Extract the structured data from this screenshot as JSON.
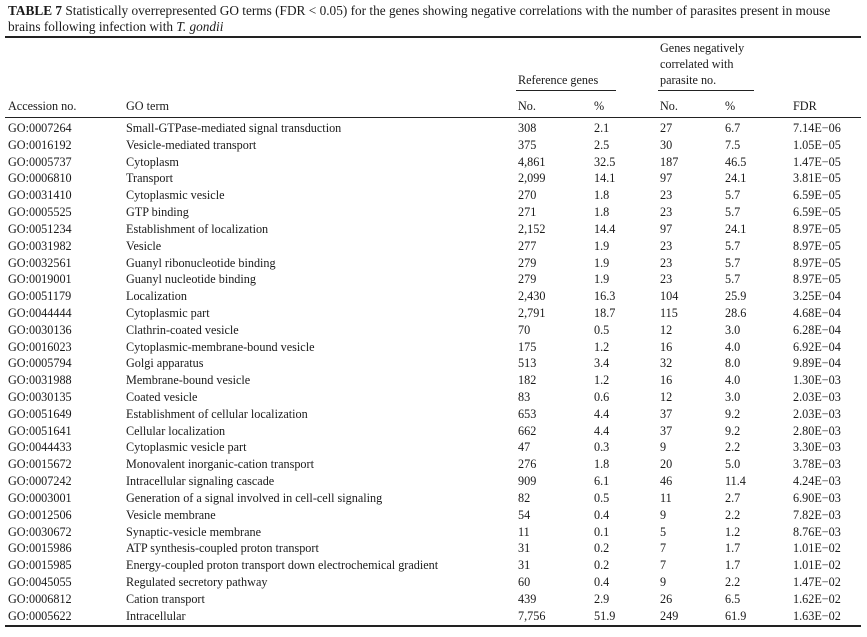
{
  "caption": {
    "label": "TABLE 7",
    "text": " Statistically overrepresented GO terms (FDR < 0.05) for the genes showing negative correlations with the number of parasites present in mouse brains following infection with ",
    "species": "T. gondii"
  },
  "header": {
    "group_reference": "Reference genes",
    "group_neg_line1": "Genes negatively",
    "group_neg_line2": "correlated with",
    "group_neg_line3": "parasite no.",
    "col_accession": "Accession no.",
    "col_term": "GO term",
    "col_ref_no": "No.",
    "col_ref_pct": "%",
    "col_neg_no": "No.",
    "col_neg_pct": "%",
    "col_fdr": "FDR"
  },
  "rows": [
    {
      "acc": "GO:0007264",
      "term": "Small-GTPase-mediated signal transduction",
      "ref_no": "308",
      "ref_pct": "2.1",
      "neg_no": "27",
      "neg_pct": "6.7",
      "fdr": "7.14E−06"
    },
    {
      "acc": "GO:0016192",
      "term": "Vesicle-mediated transport",
      "ref_no": "375",
      "ref_pct": "2.5",
      "neg_no": "30",
      "neg_pct": "7.5",
      "fdr": "1.05E−05"
    },
    {
      "acc": "GO:0005737",
      "term": "Cytoplasm",
      "ref_no": "4,861",
      "ref_pct": "32.5",
      "neg_no": "187",
      "neg_pct": "46.5",
      "fdr": "1.47E−05"
    },
    {
      "acc": "GO:0006810",
      "term": "Transport",
      "ref_no": "2,099",
      "ref_pct": "14.1",
      "neg_no": "97",
      "neg_pct": "24.1",
      "fdr": "3.81E−05"
    },
    {
      "acc": "GO:0031410",
      "term": "Cytoplasmic vesicle",
      "ref_no": "270",
      "ref_pct": "1.8",
      "neg_no": "23",
      "neg_pct": "5.7",
      "fdr": "6.59E−05"
    },
    {
      "acc": "GO:0005525",
      "term": "GTP binding",
      "ref_no": "271",
      "ref_pct": "1.8",
      "neg_no": "23",
      "neg_pct": "5.7",
      "fdr": "6.59E−05"
    },
    {
      "acc": "GO:0051234",
      "term": "Establishment of localization",
      "ref_no": "2,152",
      "ref_pct": "14.4",
      "neg_no": "97",
      "neg_pct": "24.1",
      "fdr": "8.97E−05"
    },
    {
      "acc": "GO:0031982",
      "term": "Vesicle",
      "ref_no": "277",
      "ref_pct": "1.9",
      "neg_no": "23",
      "neg_pct": "5.7",
      "fdr": "8.97E−05"
    },
    {
      "acc": "GO:0032561",
      "term": "Guanyl ribonucleotide binding",
      "ref_no": "279",
      "ref_pct": "1.9",
      "neg_no": "23",
      "neg_pct": "5.7",
      "fdr": "8.97E−05"
    },
    {
      "acc": "GO:0019001",
      "term": "Guanyl nucleotide binding",
      "ref_no": "279",
      "ref_pct": "1.9",
      "neg_no": "23",
      "neg_pct": "5.7",
      "fdr": "8.97E−05"
    },
    {
      "acc": "GO:0051179",
      "term": "Localization",
      "ref_no": "2,430",
      "ref_pct": "16.3",
      "neg_no": "104",
      "neg_pct": "25.9",
      "fdr": "3.25E−04"
    },
    {
      "acc": "GO:0044444",
      "term": "Cytoplasmic part",
      "ref_no": "2,791",
      "ref_pct": "18.7",
      "neg_no": "115",
      "neg_pct": "28.6",
      "fdr": "4.68E−04"
    },
    {
      "acc": "GO:0030136",
      "term": "Clathrin-coated vesicle",
      "ref_no": "70",
      "ref_pct": "0.5",
      "neg_no": "12",
      "neg_pct": "3.0",
      "fdr": "6.28E−04"
    },
    {
      "acc": "GO:0016023",
      "term": "Cytoplasmic-membrane-bound vesicle",
      "ref_no": "175",
      "ref_pct": "1.2",
      "neg_no": "16",
      "neg_pct": "4.0",
      "fdr": "6.92E−04"
    },
    {
      "acc": "GO:0005794",
      "term": "Golgi apparatus",
      "ref_no": "513",
      "ref_pct": "3.4",
      "neg_no": "32",
      "neg_pct": "8.0",
      "fdr": "9.89E−04"
    },
    {
      "acc": "GO:0031988",
      "term": "Membrane-bound vesicle",
      "ref_no": "182",
      "ref_pct": "1.2",
      "neg_no": "16",
      "neg_pct": "4.0",
      "fdr": "1.30E−03"
    },
    {
      "acc": "GO:0030135",
      "term": "Coated vesicle",
      "ref_no": "83",
      "ref_pct": "0.6",
      "neg_no": "12",
      "neg_pct": "3.0",
      "fdr": "2.03E−03"
    },
    {
      "acc": "GO:0051649",
      "term": "Establishment of cellular localization",
      "ref_no": "653",
      "ref_pct": "4.4",
      "neg_no": "37",
      "neg_pct": "9.2",
      "fdr": "2.03E−03"
    },
    {
      "acc": "GO:0051641",
      "term": "Cellular localization",
      "ref_no": "662",
      "ref_pct": "4.4",
      "neg_no": "37",
      "neg_pct": "9.2",
      "fdr": "2.80E−03"
    },
    {
      "acc": "GO:0044433",
      "term": "Cytoplasmic vesicle part",
      "ref_no": "47",
      "ref_pct": "0.3",
      "neg_no": "9",
      "neg_pct": "2.2",
      "fdr": "3.30E−03"
    },
    {
      "acc": "GO:0015672",
      "term": "Monovalent inorganic-cation transport",
      "ref_no": "276",
      "ref_pct": "1.8",
      "neg_no": "20",
      "neg_pct": "5.0",
      "fdr": "3.78E−03"
    },
    {
      "acc": "GO:0007242",
      "term": "Intracellular signaling cascade",
      "ref_no": "909",
      "ref_pct": "6.1",
      "neg_no": "46",
      "neg_pct": "11.4",
      "fdr": "4.24E−03"
    },
    {
      "acc": "GO:0003001",
      "term": "Generation of a signal involved in cell-cell signaling",
      "ref_no": "82",
      "ref_pct": "0.5",
      "neg_no": "11",
      "neg_pct": "2.7",
      "fdr": "6.90E−03"
    },
    {
      "acc": "GO:0012506",
      "term": "Vesicle membrane",
      "ref_no": "54",
      "ref_pct": "0.4",
      "neg_no": "9",
      "neg_pct": "2.2",
      "fdr": "7.82E−03"
    },
    {
      "acc": "GO:0030672",
      "term": "Synaptic-vesicle membrane",
      "ref_no": "11",
      "ref_pct": "0.1",
      "neg_no": "5",
      "neg_pct": "1.2",
      "fdr": "8.76E−03"
    },
    {
      "acc": "GO:0015986",
      "term": "ATP synthesis-coupled proton transport",
      "ref_no": "31",
      "ref_pct": "0.2",
      "neg_no": "7",
      "neg_pct": "1.7",
      "fdr": "1.01E−02"
    },
    {
      "acc": "GO:0015985",
      "term": "Energy-coupled proton transport down electrochemical gradient",
      "ref_no": "31",
      "ref_pct": "0.2",
      "neg_no": "7",
      "neg_pct": "1.7",
      "fdr": "1.01E−02"
    },
    {
      "acc": "GO:0045055",
      "term": "Regulated secretory pathway",
      "ref_no": "60",
      "ref_pct": "0.4",
      "neg_no": "9",
      "neg_pct": "2.2",
      "fdr": "1.47E−02"
    },
    {
      "acc": "GO:0006812",
      "term": "Cation transport",
      "ref_no": "439",
      "ref_pct": "2.9",
      "neg_no": "26",
      "neg_pct": "6.5",
      "fdr": "1.62E−02"
    },
    {
      "acc": "GO:0005622",
      "term": "Intracellular",
      "ref_no": "7,756",
      "ref_pct": "51.9",
      "neg_no": "249",
      "neg_pct": "61.9",
      "fdr": "1.63E−02"
    }
  ]
}
